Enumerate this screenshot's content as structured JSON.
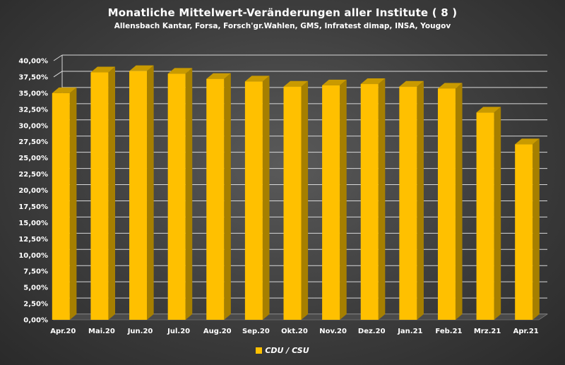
{
  "chart_data": {
    "type": "bar",
    "title": "Monatliche Mittelwert-Veränderungen aller Institute ( 8 )",
    "subtitle": "Allensbach Kantar, Forsa, Forsch'gr.Wahlen, GMS, Infratest dimap, INSA, Yougov",
    "categories": [
      "Apr.20",
      "Mai.20",
      "Jun.20",
      "Jul.20",
      "Aug.20",
      "Sep.20",
      "Okt.20",
      "Nov.20",
      "Dez.20",
      "Jan.21",
      "Feb.21",
      "Mrz.21",
      "Apr.21"
    ],
    "series": [
      {
        "name": "CDU / CSU",
        "color": "#FFC000",
        "values": [
          0.35,
          0.382,
          0.384,
          0.38,
          0.372,
          0.368,
          0.36,
          0.362,
          0.364,
          0.36,
          0.357,
          0.32,
          0.271
        ]
      }
    ],
    "ylim": [
      0,
      0.4
    ],
    "ytick_step": 0.025,
    "ytick_labels": [
      "0,00%",
      "2,50%",
      "5,00%",
      "7,50%",
      "10,00%",
      "12,50%",
      "15,00%",
      "17,50%",
      "20,00%",
      "22,50%",
      "25,00%",
      "27,50%",
      "30,00%",
      "32,50%",
      "35,00%",
      "37,50%",
      "40,00%"
    ],
    "grid": true,
    "legend_position": "bottom"
  }
}
